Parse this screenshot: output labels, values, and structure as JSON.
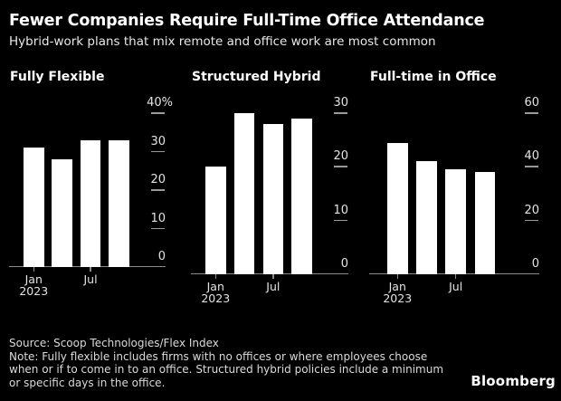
{
  "header": {
    "title": "Fewer Companies Require Full-Time Office Attendance",
    "subtitle": "Hybrid-work plans that mix remote and office work are most common"
  },
  "chart_data": [
    {
      "type": "bar",
      "title": "Fully Flexible",
      "unit": "%",
      "values": [
        31,
        28,
        33,
        33
      ],
      "ylim": [
        0,
        40
      ],
      "yticks": [
        {
          "value": 0,
          "label": "0"
        },
        {
          "value": 10,
          "label": "10"
        },
        {
          "value": 20,
          "label": "20"
        },
        {
          "value": 30,
          "label": "30"
        },
        {
          "value": 40,
          "label": "40%"
        }
      ],
      "xticks": [
        {
          "bar": 0,
          "lines": [
            "Jan",
            "2023"
          ]
        },
        {
          "bar": 2,
          "lines": [
            "Jul"
          ]
        }
      ]
    },
    {
      "type": "bar",
      "title": "Structured Hybrid",
      "unit": "%",
      "values": [
        20,
        30,
        28,
        29
      ],
      "ylim": [
        0,
        30
      ],
      "yticks": [
        {
          "value": 0,
          "label": "0"
        },
        {
          "value": 10,
          "label": "10"
        },
        {
          "value": 20,
          "label": "20"
        },
        {
          "value": 30,
          "label": "30"
        }
      ],
      "xticks": [
        {
          "bar": 0,
          "lines": [
            "Jan",
            "2023"
          ]
        },
        {
          "bar": 2,
          "lines": [
            "Jul"
          ]
        }
      ]
    },
    {
      "type": "bar",
      "title": "Full-time in Office",
      "unit": "%",
      "values": [
        49,
        42,
        39,
        38
      ],
      "ylim": [
        0,
        60
      ],
      "yticks": [
        {
          "value": 0,
          "label": "0"
        },
        {
          "value": 20,
          "label": "20"
        },
        {
          "value": 40,
          "label": "40"
        },
        {
          "value": 60,
          "label": "60"
        }
      ],
      "xticks": [
        {
          "bar": 0,
          "lines": [
            "Jan",
            "2023"
          ]
        },
        {
          "bar": 2,
          "lines": [
            "Jul"
          ]
        }
      ]
    }
  ],
  "footer": {
    "source": "Source: Scoop Technologies/Flex Index",
    "note_lines": [
      "Note: Fully flexible includes firms with no offices or where employees choose",
      "when or if to come in to an office. Structured hybrid policies include a minimum",
      "or specific days in the office."
    ],
    "brand": "Bloomberg"
  },
  "colors": {
    "background": "#000000",
    "bar": "#ffffff",
    "axis_line": "#8a8a8a",
    "tick_label": "#e3e3e3",
    "title": "#ffffff",
    "note_text": "#dadada"
  }
}
